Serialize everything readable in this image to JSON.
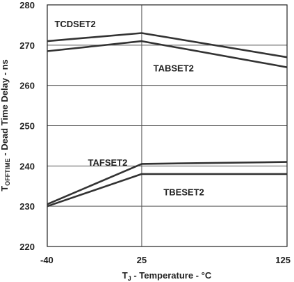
{
  "chart_data": {
    "type": "line",
    "xlabel": {
      "prefix": "T",
      "subscript": "J",
      "suffix": " - Temperature - °C"
    },
    "ylabel": {
      "prefix": "T",
      "subscript": "OFFTIME",
      "suffix": " - Dead Time Delay - ns"
    },
    "xlim": [
      -40,
      125
    ],
    "ylim": [
      220,
      280
    ],
    "x_ticks": [
      -40,
      25,
      125
    ],
    "x_tick_labels": [
      "-40",
      "25",
      "125"
    ],
    "y_ticks": [
      220,
      230,
      240,
      250,
      260,
      270,
      280
    ],
    "y_tick_labels": [
      "220",
      "230",
      "240",
      "250",
      "260",
      "270",
      "280"
    ],
    "grid": true,
    "series": [
      {
        "name": "TCDSET2",
        "x": [
          -40,
          25,
          125
        ],
        "y": [
          271.0,
          273.0,
          267.0
        ],
        "label_at": [
          -35,
          274.5
        ]
      },
      {
        "name": "TABSET2",
        "x": [
          -40,
          25,
          125
        ],
        "y": [
          268.5,
          271.0,
          264.5
        ],
        "label_at": [
          33,
          263.5
        ]
      },
      {
        "name": "TAFSET2",
        "x": [
          -40,
          25,
          125
        ],
        "y": [
          230.5,
          240.5,
          241.0
        ],
        "label_at": [
          -12,
          240.1
        ]
      },
      {
        "name": "TBESET2",
        "x": [
          -40,
          25,
          125
        ],
        "y": [
          230.0,
          238.0,
          238.0
        ],
        "label_at": [
          40,
          232.7
        ]
      }
    ]
  }
}
